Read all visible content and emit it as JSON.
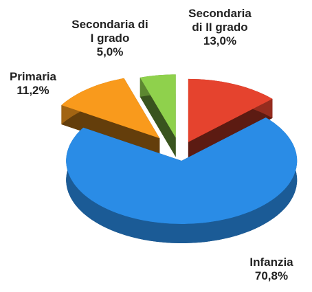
{
  "chart_data": {
    "type": "pie",
    "categories": [
      "Secondaria di II grado",
      "Infanzia",
      "Primaria",
      "Secondaria di I grado"
    ],
    "values": [
      13.0,
      70.8,
      11.2,
      5.0
    ],
    "value_labels": [
      "13,0%",
      "70,8%",
      "11,2%",
      "5,0%"
    ],
    "colors": [
      "#e5432e",
      "#2a8ce6",
      "#f99a1c",
      "#8fd14c"
    ]
  }
}
